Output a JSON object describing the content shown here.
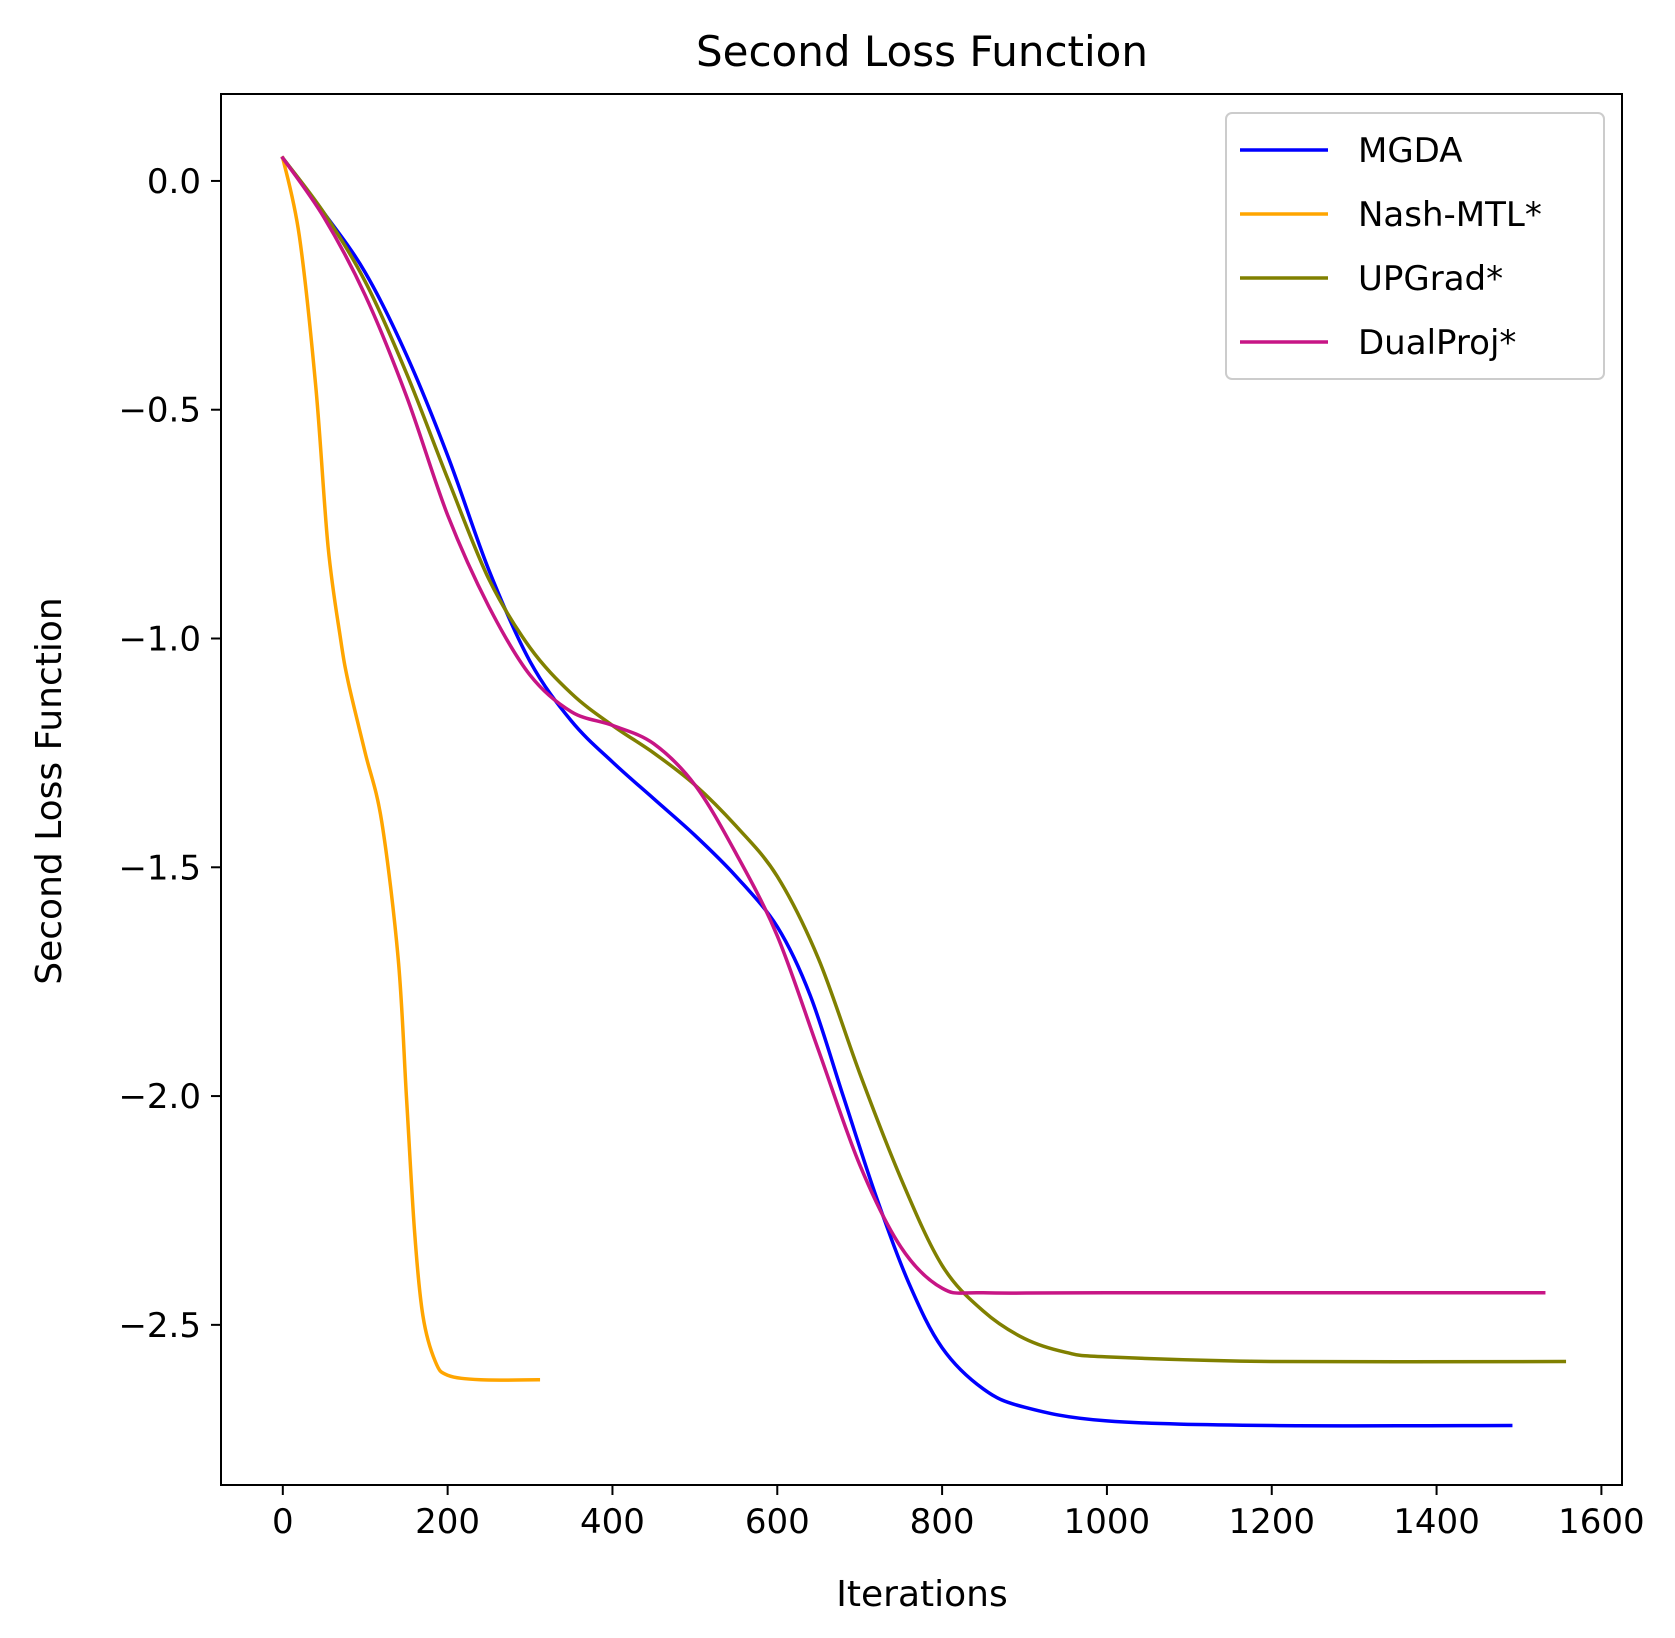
{
  "chart_data": {
    "type": "line",
    "title": "Second Loss Function",
    "xlabel": "Iterations",
    "ylabel": "Second Loss Function",
    "xlim": [
      -75,
      1625
    ],
    "ylim": [
      -2.85,
      0.19
    ],
    "xticks": [
      0,
      200,
      400,
      600,
      800,
      1000,
      1200,
      1400,
      1600
    ],
    "yticks": [
      0.0,
      -0.5,
      -1.0,
      -1.5,
      -2.0,
      -2.5
    ],
    "xtick_labels": [
      "0",
      "200",
      "400",
      "600",
      "800",
      "1000",
      "1200",
      "1400",
      "1600"
    ],
    "ytick_labels": [
      "0.0",
      "−0.5",
      "−1.0",
      "−1.5",
      "−2.0",
      "−2.5"
    ],
    "grid": false,
    "legend_position": "top-right",
    "series": [
      {
        "name": "MGDA",
        "color": "#0000ff",
        "points": [
          [
            0,
            0.05
          ],
          [
            50,
            -0.07
          ],
          [
            100,
            -0.2
          ],
          [
            150,
            -0.38
          ],
          [
            200,
            -0.6
          ],
          [
            250,
            -0.85
          ],
          [
            300,
            -1.05
          ],
          [
            350,
            -1.18
          ],
          [
            400,
            -1.27
          ],
          [
            450,
            -1.35
          ],
          [
            500,
            -1.43
          ],
          [
            550,
            -1.52
          ],
          [
            600,
            -1.63
          ],
          [
            640,
            -1.78
          ],
          [
            680,
            -2.0
          ],
          [
            720,
            -2.22
          ],
          [
            760,
            -2.41
          ],
          [
            800,
            -2.55
          ],
          [
            850,
            -2.64
          ],
          [
            900,
            -2.68
          ],
          [
            1000,
            -2.71
          ],
          [
            1200,
            -2.72
          ],
          [
            1490,
            -2.72
          ]
        ]
      },
      {
        "name": "Nash-MTL*",
        "color": "#ffa500",
        "points": [
          [
            0,
            0.05
          ],
          [
            20,
            -0.12
          ],
          [
            40,
            -0.45
          ],
          [
            55,
            -0.8
          ],
          [
            70,
            -1.0
          ],
          [
            80,
            -1.1
          ],
          [
            100,
            -1.25
          ],
          [
            120,
            -1.4
          ],
          [
            140,
            -1.7
          ],
          [
            150,
            -2.0
          ],
          [
            160,
            -2.3
          ],
          [
            170,
            -2.48
          ],
          [
            185,
            -2.58
          ],
          [
            200,
            -2.61
          ],
          [
            240,
            -2.62
          ],
          [
            310,
            -2.62
          ]
        ]
      },
      {
        "name": "UPGrad*",
        "color": "#808000",
        "points": [
          [
            0,
            0.05
          ],
          [
            50,
            -0.07
          ],
          [
            100,
            -0.22
          ],
          [
            150,
            -0.42
          ],
          [
            200,
            -0.65
          ],
          [
            250,
            -0.87
          ],
          [
            300,
            -1.02
          ],
          [
            350,
            -1.12
          ],
          [
            400,
            -1.19
          ],
          [
            450,
            -1.25
          ],
          [
            500,
            -1.32
          ],
          [
            550,
            -1.41
          ],
          [
            600,
            -1.52
          ],
          [
            650,
            -1.7
          ],
          [
            700,
            -1.95
          ],
          [
            750,
            -2.18
          ],
          [
            800,
            -2.37
          ],
          [
            850,
            -2.47
          ],
          [
            900,
            -2.53
          ],
          [
            950,
            -2.56
          ],
          [
            1000,
            -2.57
          ],
          [
            1200,
            -2.58
          ],
          [
            1555,
            -2.58
          ]
        ]
      },
      {
        "name": "DualProj*",
        "color": "#c71585",
        "points": [
          [
            0,
            0.05
          ],
          [
            50,
            -0.08
          ],
          [
            100,
            -0.25
          ],
          [
            150,
            -0.47
          ],
          [
            200,
            -0.73
          ],
          [
            250,
            -0.93
          ],
          [
            300,
            -1.08
          ],
          [
            350,
            -1.16
          ],
          [
            400,
            -1.19
          ],
          [
            450,
            -1.23
          ],
          [
            500,
            -1.32
          ],
          [
            550,
            -1.47
          ],
          [
            600,
            -1.65
          ],
          [
            650,
            -1.9
          ],
          [
            700,
            -2.15
          ],
          [
            750,
            -2.33
          ],
          [
            800,
            -2.42
          ],
          [
            850,
            -2.43
          ],
          [
            1000,
            -2.43
          ],
          [
            1530,
            -2.43
          ]
        ]
      }
    ]
  }
}
